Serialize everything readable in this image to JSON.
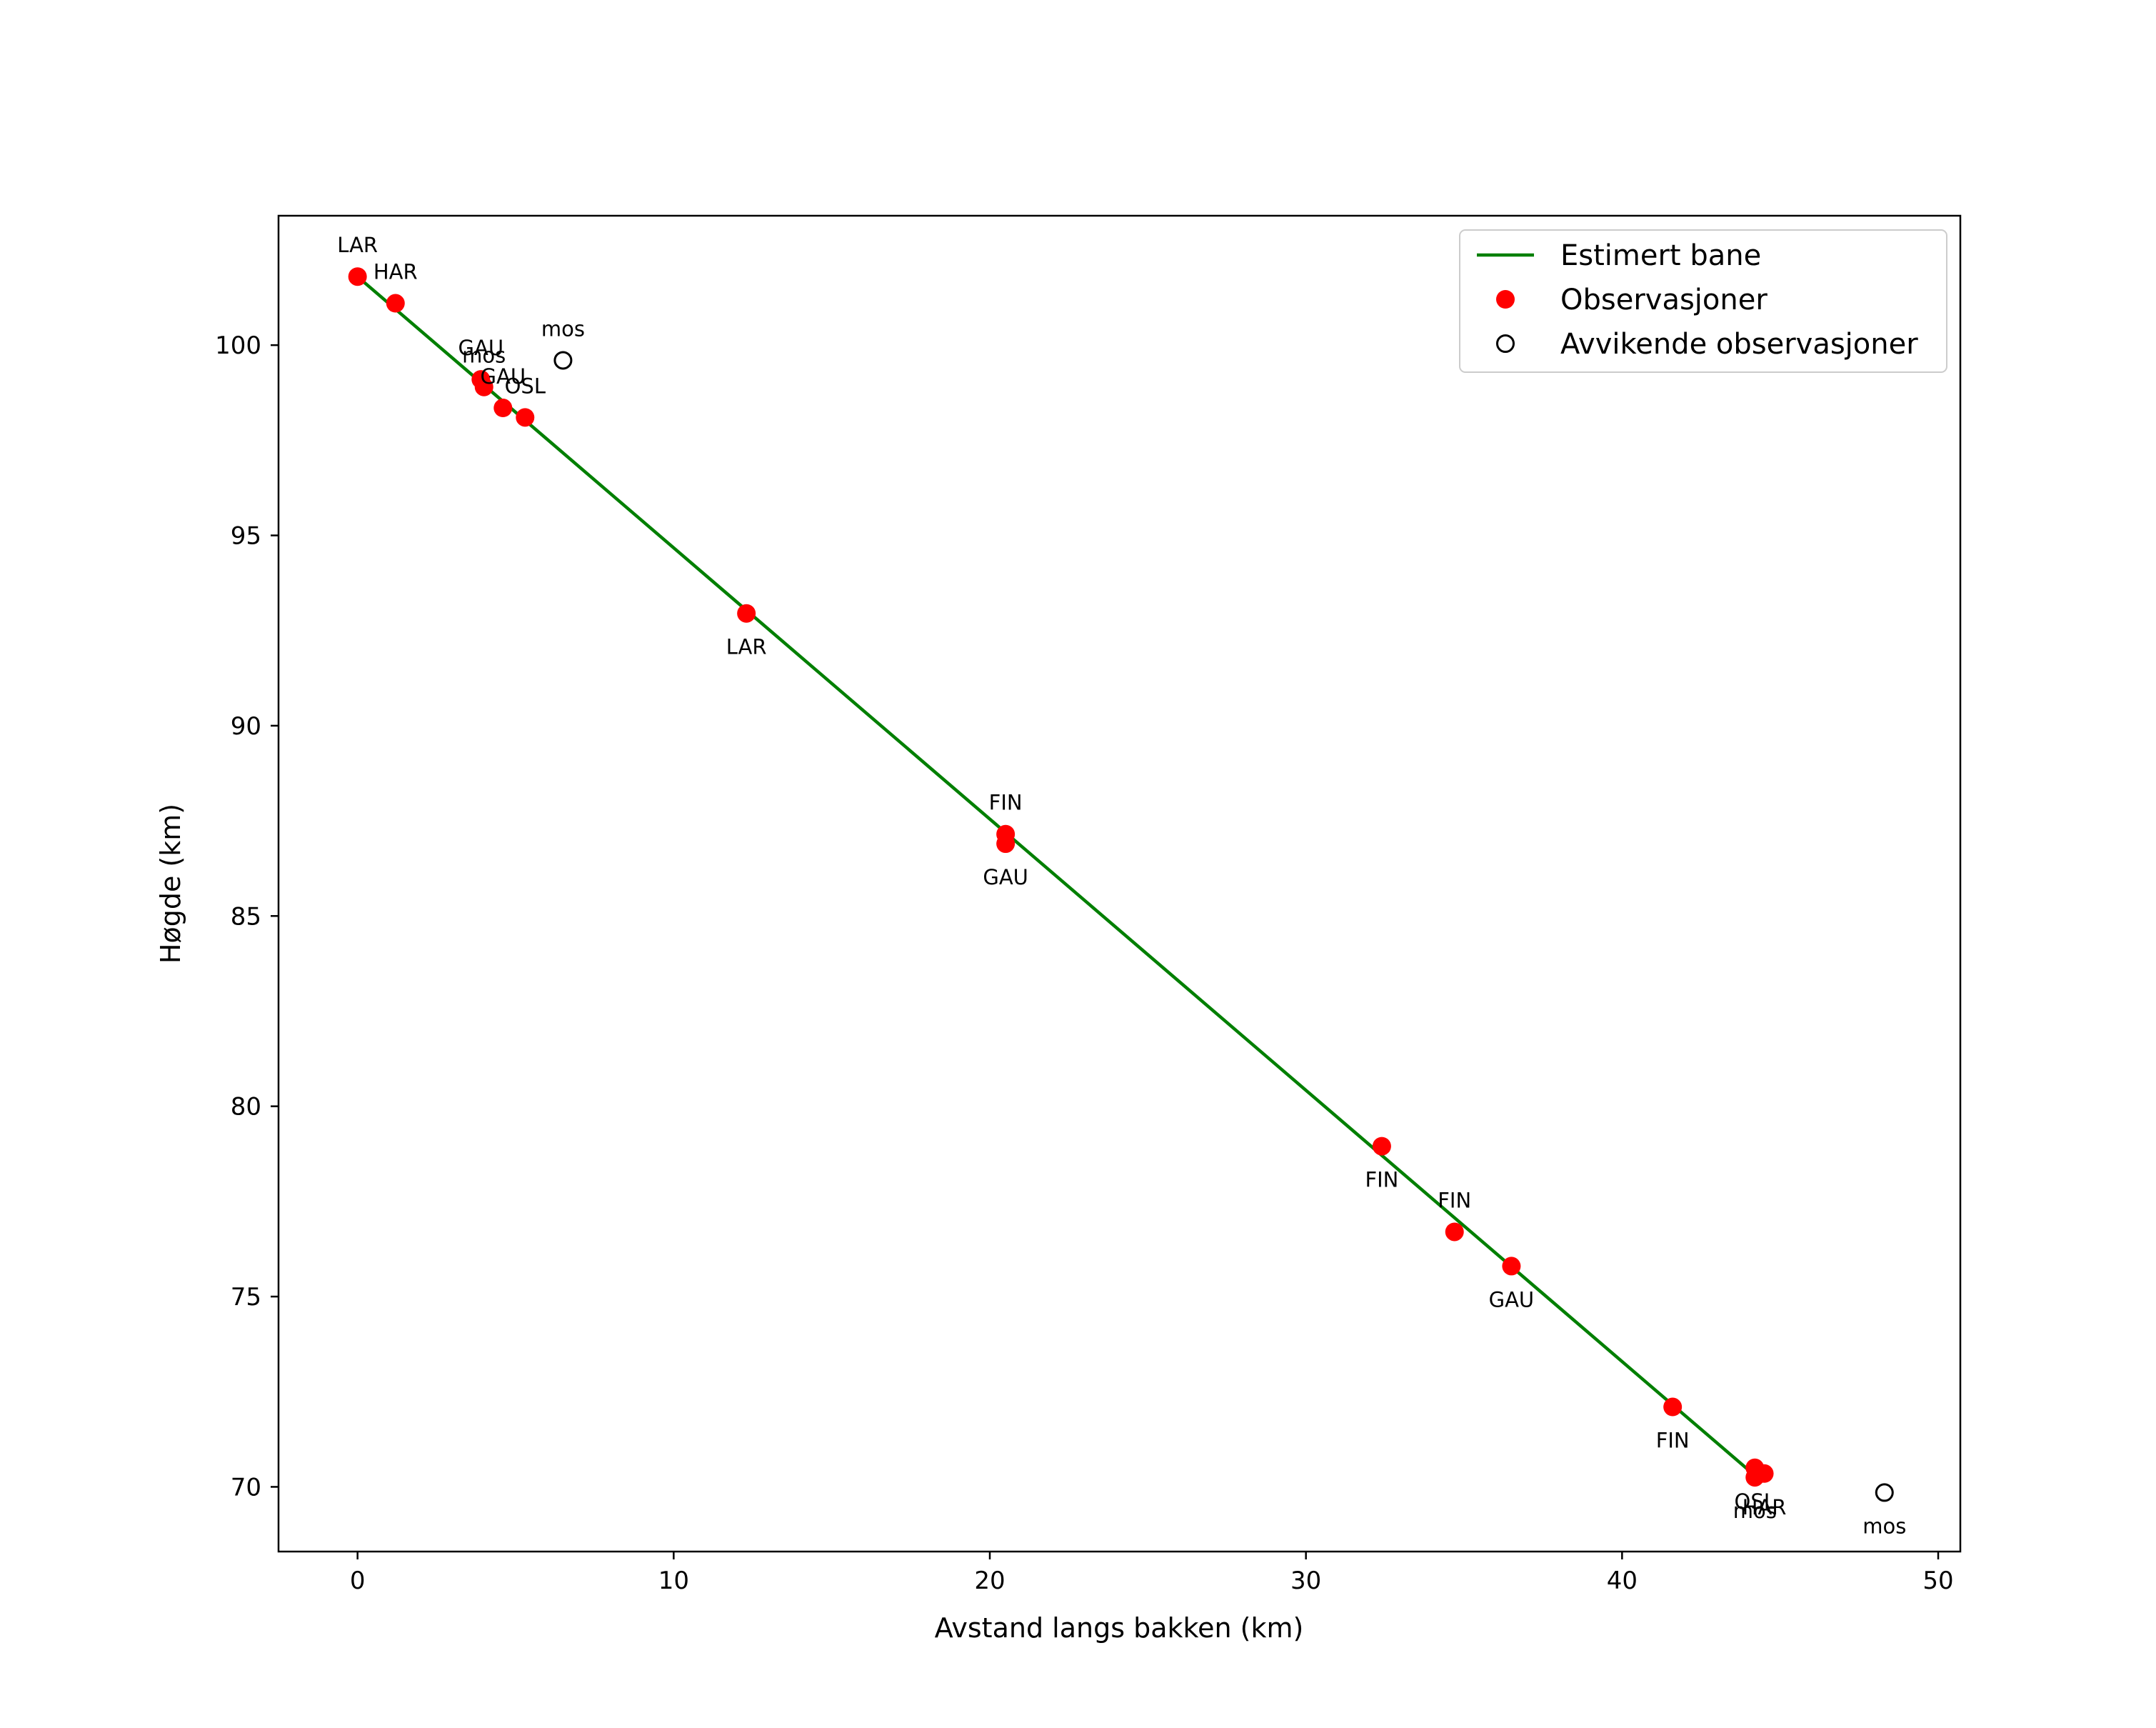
{
  "chart_data": {
    "type": "scatter",
    "title": "",
    "xlabel": "Avstand langs bakken (km)",
    "ylabel": "Høgde (km)",
    "xlim": [
      -2.5,
      50.7
    ],
    "ylim": [
      68.3,
      103.4
    ],
    "xticks": [
      0,
      10,
      20,
      30,
      40,
      50
    ],
    "yticks": [
      70,
      75,
      80,
      85,
      90,
      95,
      100
    ],
    "grid": false,
    "legend_position": "top-right",
    "colors": {
      "line": "#007f00",
      "observation": "#ff0000",
      "outlier_edge": "#000000"
    },
    "series": [
      {
        "name": "Estimert bane",
        "kind": "line",
        "x": [
          0.0,
          44.2
        ],
        "y": [
          101.8,
          70.3
        ]
      },
      {
        "name": "Observasjoner",
        "kind": "filled-marker",
        "points": [
          {
            "x": 0.0,
            "y": 101.8,
            "label": "LAR",
            "label_side": "above"
          },
          {
            "x": 1.2,
            "y": 101.1,
            "label": "HAR",
            "label_side": "above"
          },
          {
            "x": 3.9,
            "y": 99.1,
            "label": "GAU",
            "label_side": "above"
          },
          {
            "x": 4.0,
            "y": 98.9,
            "label": "mos",
            "label_side": "above"
          },
          {
            "x": 4.6,
            "y": 98.35,
            "label": "GAU",
            "label_side": "above"
          },
          {
            "x": 5.3,
            "y": 98.1,
            "label": "OSL",
            "label_side": "above"
          },
          {
            "x": 12.3,
            "y": 92.95,
            "label": "LAR",
            "label_side": "below"
          },
          {
            "x": 20.5,
            "y": 87.15,
            "label": "FIN",
            "label_side": "above"
          },
          {
            "x": 20.5,
            "y": 86.9,
            "label": "GAU",
            "label_side": "below"
          },
          {
            "x": 32.4,
            "y": 78.95,
            "label": "FIN",
            "label_side": "below"
          },
          {
            "x": 34.7,
            "y": 76.7,
            "label": "FIN",
            "label_side": "above"
          },
          {
            "x": 36.5,
            "y": 75.8,
            "label": "GAU",
            "label_side": "below"
          },
          {
            "x": 41.6,
            "y": 72.1,
            "label": "FIN",
            "label_side": "below"
          },
          {
            "x": 44.2,
            "y": 70.5,
            "label": "OSL",
            "label_side": "below"
          },
          {
            "x": 44.2,
            "y": 70.25,
            "label": "mos",
            "label_side": "below"
          },
          {
            "x": 44.5,
            "y": 70.35,
            "label": "HAR",
            "label_side": "below"
          }
        ]
      },
      {
        "name": "Avvikende observasjoner",
        "kind": "hollow-marker",
        "points": [
          {
            "x": 6.5,
            "y": 99.6,
            "label": "mos",
            "label_side": "above"
          },
          {
            "x": 48.3,
            "y": 69.85,
            "label": "mos",
            "label_side": "below"
          }
        ]
      }
    ],
    "legend": [
      {
        "label": "Estimert bane",
        "marker": "line"
      },
      {
        "label": "Observasjoner",
        "marker": "filled-circle"
      },
      {
        "label": "Avvikende observasjoner",
        "marker": "hollow-circle"
      }
    ]
  }
}
